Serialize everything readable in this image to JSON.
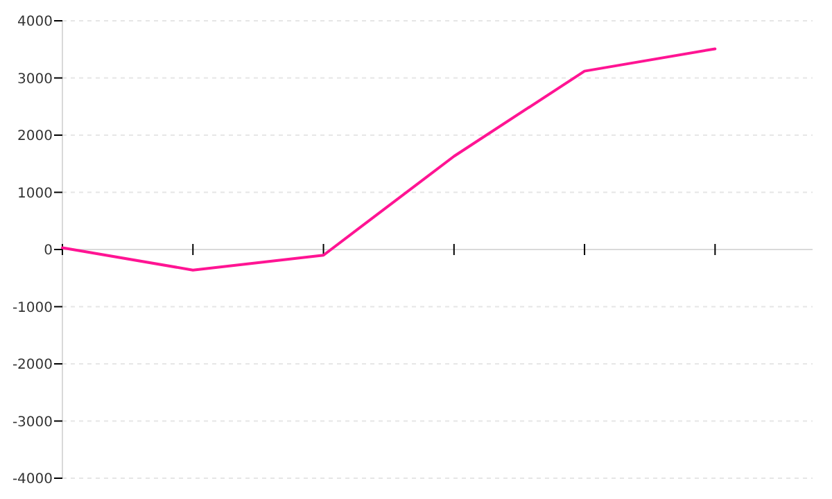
{
  "chart_data": {
    "type": "line",
    "categories": [
      null,
      null,
      null,
      null,
      null,
      null
    ],
    "series": [
      {
        "color": "#ff1493",
        "values": [
          30,
          -360,
          -100,
          1630,
          3120,
          3510
        ]
      }
    ],
    "ylim": [
      -4000,
      4000
    ],
    "yticks": [
      -4000,
      -3000,
      -2000,
      -1000,
      0,
      1000,
      2000,
      3000,
      4000
    ],
    "grid": "y",
    "marker": "none",
    "line_style": "solid"
  }
}
